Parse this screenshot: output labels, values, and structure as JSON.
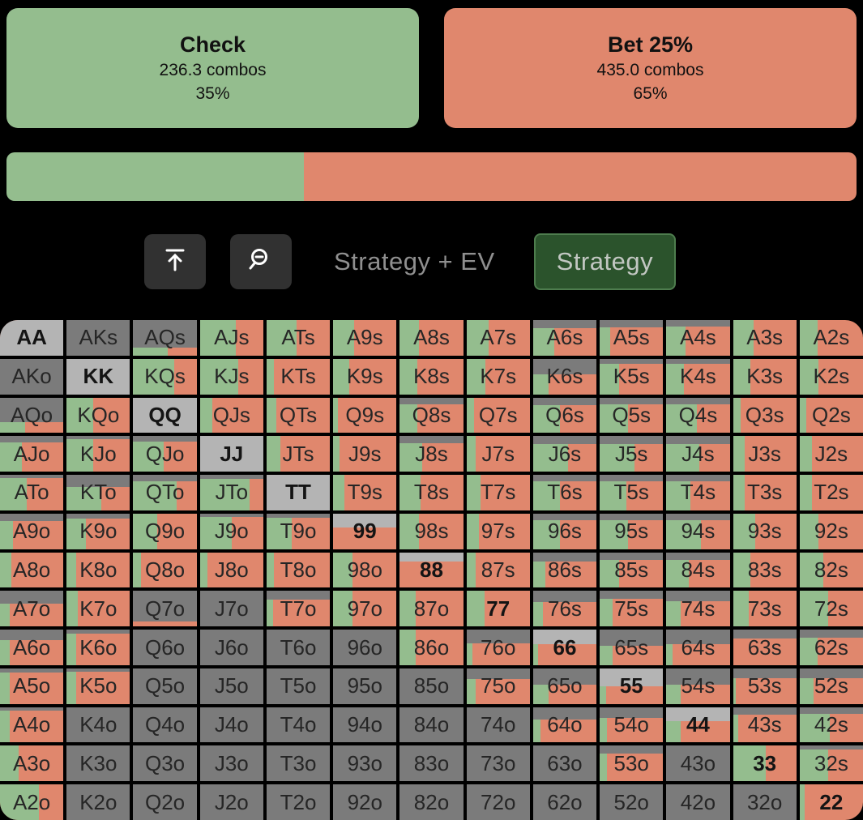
{
  "colors": {
    "green": "#94bd8e",
    "salmon": "#e0876d",
    "dark_gray": "#7b7b7b",
    "light_gray": "#b4b4b4",
    "page_bg": "#000000",
    "toolbar_button_bg": "#313131",
    "strategy_button_bg": "#2b532c",
    "strategy_button_border": "#4e7d4e",
    "strategy_button_text": "#c2c7c2",
    "muted_text": "#8f8f8f",
    "cell_text": "#262626"
  },
  "actions": [
    {
      "id": "check",
      "label": "Check",
      "combos": "236.3 combos",
      "percent": "35%",
      "frequency": 0.35,
      "color": "#94bd8e"
    },
    {
      "id": "bet",
      "label": "Bet 25%",
      "combos": "435.0 combos",
      "percent": "65%",
      "frequency": 0.65,
      "color": "#e0876d"
    }
  ],
  "toolbar": {
    "icons": [
      {
        "name": "collapse-top-icon"
      },
      {
        "name": "zoom-out-icon"
      }
    ],
    "view_label": "Strategy + EV",
    "mode_button_label": "Strategy"
  },
  "matrix": {
    "cell_format": [
      "hand",
      "kind",
      "gray_fraction",
      "green_fraction"
    ],
    "legend": {
      "green": "Check",
      "salmon": "Bet 25%",
      "gray": "not in range"
    },
    "rows": [
      [
        [
          "AA",
          "pair",
          1,
          0
        ],
        [
          "AKs",
          "suited",
          1,
          0
        ],
        [
          "AQs",
          "suited",
          0.78,
          0.55
        ],
        [
          "AJs",
          "suited",
          0,
          0.57
        ],
        [
          "ATs",
          "suited",
          0,
          0.48
        ],
        [
          "A9s",
          "suited",
          0,
          0.33
        ],
        [
          "A8s",
          "suited",
          0,
          0.3
        ],
        [
          "A7s",
          "suited",
          0,
          0.35
        ],
        [
          "A6s",
          "suited",
          0.22,
          0.33
        ],
        [
          "A5s",
          "suited",
          0.2,
          0.17
        ],
        [
          "A4s",
          "suited",
          0.18,
          0.3
        ],
        [
          "A3s",
          "suited",
          0,
          0.33
        ],
        [
          "A2s",
          "suited",
          0,
          0.28
        ]
      ],
      [
        [
          "AKo",
          "offsuit",
          1,
          0
        ],
        [
          "KK",
          "pair",
          1,
          0
        ],
        [
          "KQs",
          "suited",
          0,
          0.65
        ],
        [
          "KJs",
          "suited",
          0,
          0.6
        ],
        [
          "KTs",
          "suited",
          0,
          0.12
        ],
        [
          "K9s",
          "suited",
          0,
          0.25
        ],
        [
          "K8s",
          "suited",
          0,
          0.28
        ],
        [
          "K7s",
          "suited",
          0,
          0.3
        ],
        [
          "K6s",
          "suited",
          0.45,
          0.25
        ],
        [
          "K5s",
          "suited",
          0.15,
          0.3
        ],
        [
          "K4s",
          "suited",
          0.15,
          0.28
        ],
        [
          "K3s",
          "suited",
          0,
          0.28
        ],
        [
          "K2s",
          "suited",
          0,
          0.3
        ]
      ],
      [
        [
          "AQo",
          "offsuit",
          0.7,
          0.4
        ],
        [
          "KQo",
          "offsuit",
          0,
          0.42
        ],
        [
          "QQ",
          "pair",
          1,
          0
        ],
        [
          "QJs",
          "suited",
          0,
          0.2
        ],
        [
          "QTs",
          "suited",
          0,
          0.15
        ],
        [
          "Q9s",
          "suited",
          0,
          0.07
        ],
        [
          "Q8s",
          "suited",
          0.2,
          0.28
        ],
        [
          "Q7s",
          "suited",
          0,
          0.12
        ],
        [
          "Q6s",
          "suited",
          0.22,
          0.42
        ],
        [
          "Q5s",
          "suited",
          0.2,
          0.45
        ],
        [
          "Q4s",
          "suited",
          0.2,
          0.48
        ],
        [
          "Q3s",
          "suited",
          0,
          0.12
        ],
        [
          "Q2s",
          "suited",
          0,
          0.1
        ]
      ],
      [
        [
          "AJo",
          "offsuit",
          0.18,
          0.35
        ],
        [
          "KJo",
          "offsuit",
          0.08,
          0.42
        ],
        [
          "QJo",
          "offsuit",
          0.15,
          0.48
        ],
        [
          "JJ",
          "pair",
          1,
          0
        ],
        [
          "JTs",
          "suited",
          0,
          0.22
        ],
        [
          "J9s",
          "suited",
          0,
          0.1
        ],
        [
          "J8s",
          "suited",
          0.2,
          0.35
        ],
        [
          "J7s",
          "suited",
          0,
          0.15
        ],
        [
          "J6s",
          "suited",
          0.22,
          0.55
        ],
        [
          "J5s",
          "suited",
          0.22,
          0.55
        ],
        [
          "J4s",
          "suited",
          0.22,
          0.52
        ],
        [
          "J3s",
          "suited",
          0,
          0.18
        ],
        [
          "J2s",
          "suited",
          0,
          0.2
        ]
      ],
      [
        [
          "ATo",
          "offsuit",
          0.08,
          0.42
        ],
        [
          "KTo",
          "offsuit",
          0.35,
          0.55
        ],
        [
          "QTo",
          "offsuit",
          0.18,
          0.68
        ],
        [
          "JTo",
          "offsuit",
          0.12,
          0.78
        ],
        [
          "TT",
          "pair",
          1,
          0
        ],
        [
          "T9s",
          "suited",
          0,
          0.18
        ],
        [
          "T8s",
          "suited",
          0,
          0.33
        ],
        [
          "T7s",
          "suited",
          0,
          0.22
        ],
        [
          "T6s",
          "suited",
          0.18,
          0.42
        ],
        [
          "T5s",
          "suited",
          0.18,
          0.42
        ],
        [
          "T4s",
          "suited",
          0.18,
          0.38
        ],
        [
          "T3s",
          "suited",
          0,
          0.18
        ],
        [
          "T2s",
          "suited",
          0,
          0.2
        ]
      ],
      [
        [
          "A9o",
          "offsuit",
          0.2,
          0.2
        ],
        [
          "K9o",
          "offsuit",
          0.15,
          0.3
        ],
        [
          "Q9o",
          "offsuit",
          0,
          0.38
        ],
        [
          "J9o",
          "offsuit",
          0.1,
          0.5
        ],
        [
          "T9o",
          "offsuit",
          0.12,
          0.4
        ],
        [
          "99",
          "pair",
          0.4,
          0
        ],
        [
          "98s",
          "suited",
          0,
          0.3
        ],
        [
          "97s",
          "suited",
          0,
          0.2
        ],
        [
          "96s",
          "suited",
          0.18,
          0.42
        ],
        [
          "95s",
          "suited",
          0.18,
          0.45
        ],
        [
          "94s",
          "suited",
          0.18,
          0.55
        ],
        [
          "93s",
          "suited",
          0,
          0.35
        ],
        [
          "92s",
          "suited",
          0,
          0.3
        ]
      ],
      [
        [
          "A8o",
          "offsuit",
          0,
          0.18
        ],
        [
          "K8o",
          "offsuit",
          0,
          0.15
        ],
        [
          "Q8o",
          "offsuit",
          0,
          0.12
        ],
        [
          "J8o",
          "offsuit",
          0,
          0.12
        ],
        [
          "T8o",
          "offsuit",
          0,
          0.12
        ],
        [
          "98o",
          "offsuit",
          0,
          0.3
        ],
        [
          "88",
          "pair",
          0.25,
          0
        ],
        [
          "87s",
          "suited",
          0,
          0.15
        ],
        [
          "86s",
          "suited",
          0.25,
          0.2
        ],
        [
          "85s",
          "suited",
          0.22,
          0.3
        ],
        [
          "84s",
          "suited",
          0.22,
          0.35
        ],
        [
          "83s",
          "suited",
          0,
          0.28
        ],
        [
          "82s",
          "suited",
          0,
          0.38
        ]
      ],
      [
        [
          "A7o",
          "offsuit",
          0.35,
          0.15
        ],
        [
          "K7o",
          "offsuit",
          0,
          0.18
        ],
        [
          "Q7o",
          "offsuit",
          0.85,
          0
        ],
        [
          "J7o",
          "offsuit",
          1,
          0
        ],
        [
          "T7o",
          "offsuit",
          0.25,
          0.1
        ],
        [
          "97o",
          "offsuit",
          0,
          0.3
        ],
        [
          "87o",
          "offsuit",
          0,
          0.25
        ],
        [
          "77",
          "pair",
          0,
          0.28
        ],
        [
          "76s",
          "suited",
          0.3,
          0.15
        ],
        [
          "75s",
          "suited",
          0.22,
          0.2
        ],
        [
          "74s",
          "suited",
          0.28,
          0.22
        ],
        [
          "73s",
          "suited",
          0,
          0.25
        ],
        [
          "72s",
          "suited",
          0,
          0.45
        ]
      ],
      [
        [
          "A6o",
          "offsuit",
          0.3,
          0.15
        ],
        [
          "K6o",
          "offsuit",
          0.12,
          0.15
        ],
        [
          "Q6o",
          "offsuit",
          1,
          0
        ],
        [
          "J6o",
          "offsuit",
          1,
          0
        ],
        [
          "T6o",
          "offsuit",
          1,
          0
        ],
        [
          "96o",
          "offsuit",
          1,
          0
        ],
        [
          "86o",
          "offsuit",
          0,
          0.25
        ],
        [
          "76o",
          "offsuit",
          0.38,
          0.1
        ],
        [
          "66",
          "pair",
          0.4,
          0.08
        ],
        [
          "65s",
          "suited",
          0.45,
          0.2
        ],
        [
          "64s",
          "suited",
          0.4,
          0.1
        ],
        [
          "63s",
          "suited",
          0.25,
          0
        ],
        [
          "62s",
          "suited",
          0.22,
          0.28
        ]
      ],
      [
        [
          "A5o",
          "offsuit",
          0.12,
          0.15
        ],
        [
          "K5o",
          "offsuit",
          0.1,
          0.15
        ],
        [
          "Q5o",
          "offsuit",
          1,
          0
        ],
        [
          "J5o",
          "offsuit",
          1,
          0
        ],
        [
          "T5o",
          "offsuit",
          1,
          0
        ],
        [
          "95o",
          "offsuit",
          1,
          0
        ],
        [
          "85o",
          "offsuit",
          1,
          0
        ],
        [
          "75o",
          "offsuit",
          0.3,
          0.15
        ],
        [
          "65o",
          "offsuit",
          0.45,
          0.25
        ],
        [
          "55",
          "pair",
          0.5,
          0.1
        ],
        [
          "54s",
          "suited",
          0.45,
          0.22
        ],
        [
          "53s",
          "suited",
          0.28,
          0.05
        ],
        [
          "52s",
          "suited",
          0.28,
          0.22
        ]
      ],
      [
        [
          "A4o",
          "offsuit",
          0.1,
          0.15
        ],
        [
          "K4o",
          "offsuit",
          1,
          0
        ],
        [
          "Q4o",
          "offsuit",
          1,
          0
        ],
        [
          "J4o",
          "offsuit",
          1,
          0
        ],
        [
          "T4o",
          "offsuit",
          1,
          0
        ],
        [
          "94o",
          "offsuit",
          1,
          0
        ],
        [
          "84o",
          "offsuit",
          1,
          0
        ],
        [
          "74o",
          "offsuit",
          1,
          0
        ],
        [
          "64o",
          "offsuit",
          0.35,
          0.12
        ],
        [
          "54o",
          "offsuit",
          0.3,
          0.12
        ],
        [
          "44",
          "pair",
          0.4,
          0.22
        ],
        [
          "43s",
          "suited",
          0.22,
          0.08
        ],
        [
          "42s",
          "suited",
          0.2,
          0.48
        ]
      ],
      [
        [
          "A3o",
          "offsuit",
          0,
          0.3
        ],
        [
          "K3o",
          "offsuit",
          1,
          0
        ],
        [
          "Q3o",
          "offsuit",
          1,
          0
        ],
        [
          "J3o",
          "offsuit",
          1,
          0
        ],
        [
          "T3o",
          "offsuit",
          1,
          0
        ],
        [
          "93o",
          "offsuit",
          1,
          0
        ],
        [
          "83o",
          "offsuit",
          1,
          0
        ],
        [
          "73o",
          "offsuit",
          1,
          0
        ],
        [
          "63o",
          "offsuit",
          1,
          0
        ],
        [
          "53o",
          "offsuit",
          0.22,
          0.12
        ],
        [
          "43o",
          "offsuit",
          1,
          0
        ],
        [
          "33",
          "pair",
          0,
          0.52
        ],
        [
          "32s",
          "suited",
          0.1,
          0.45
        ]
      ],
      [
        [
          "A2o",
          "offsuit",
          0,
          0.62
        ],
        [
          "K2o",
          "offsuit",
          1,
          0
        ],
        [
          "Q2o",
          "offsuit",
          1,
          0
        ],
        [
          "J2o",
          "offsuit",
          1,
          0
        ],
        [
          "T2o",
          "offsuit",
          1,
          0
        ],
        [
          "92o",
          "offsuit",
          1,
          0
        ],
        [
          "82o",
          "offsuit",
          1,
          0
        ],
        [
          "72o",
          "offsuit",
          1,
          0
        ],
        [
          "62o",
          "offsuit",
          1,
          0
        ],
        [
          "52o",
          "offsuit",
          1,
          0
        ],
        [
          "42o",
          "offsuit",
          1,
          0
        ],
        [
          "32o",
          "offsuit",
          1,
          0
        ],
        [
          "22",
          "pair",
          0,
          0.08
        ]
      ]
    ]
  }
}
